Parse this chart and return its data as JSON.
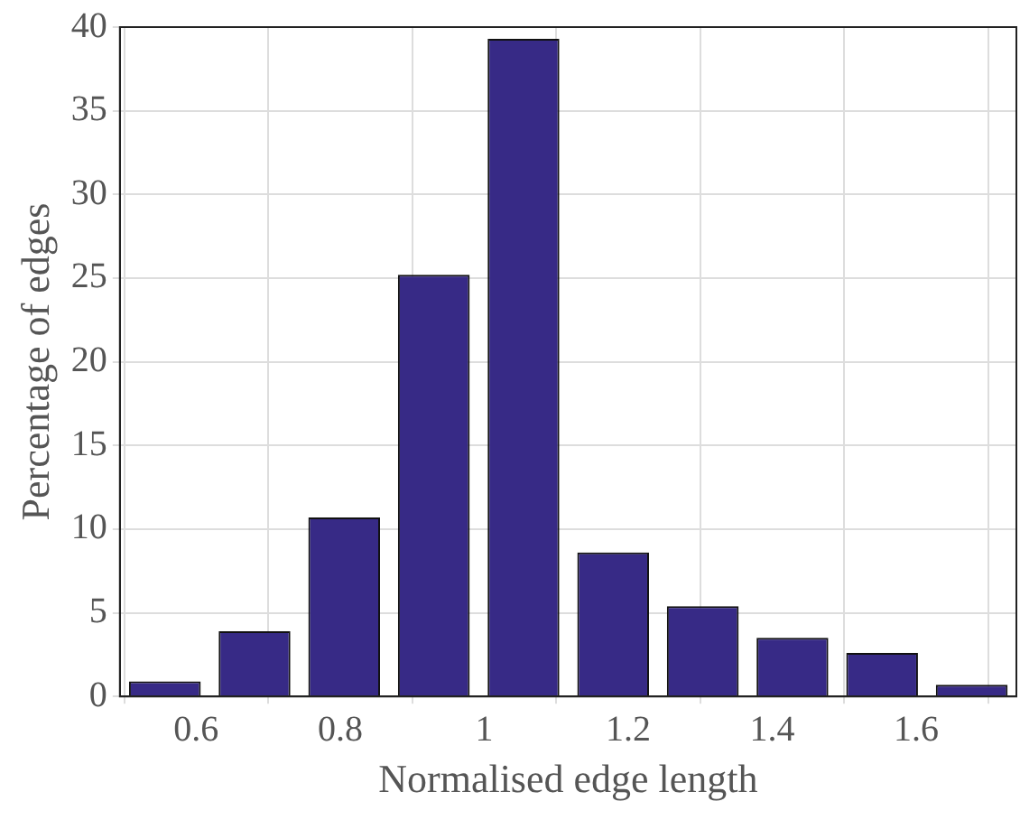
{
  "chart_data": {
    "type": "histogram",
    "xlabel": "Normalised edge length",
    "ylabel": "Percentage of edges",
    "bins": [
      0.494,
      0.619,
      0.743,
      0.868,
      0.992,
      1.117,
      1.241,
      1.366,
      1.49,
      1.615,
      1.739
    ],
    "values": [
      0.9,
      3.9,
      10.7,
      25.2,
      39.3,
      8.6,
      5.4,
      3.5,
      2.6,
      0.7
    ],
    "color": "#372a86",
    "xlim": [
      0.494,
      1.739
    ],
    "xticks": [
      0.6,
      0.8,
      1,
      1.2,
      1.4,
      1.6
    ],
    "ylim": [
      0,
      40
    ],
    "yticks": [
      0,
      5,
      10,
      15,
      20,
      25,
      30,
      35,
      40
    ],
    "grid": true
  }
}
